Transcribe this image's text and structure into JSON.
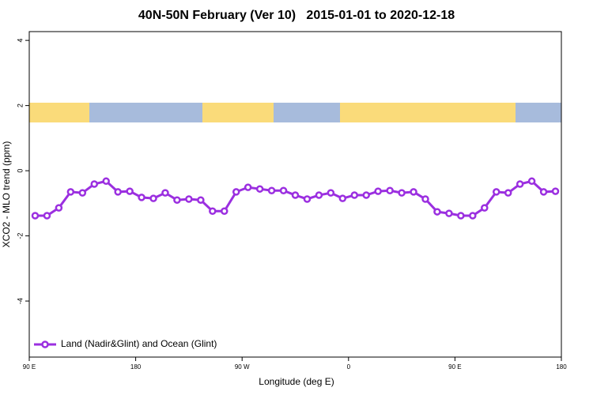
{
  "chart_data": {
    "type": "line",
    "title": "40N-50N February (Ver 10)   2015-01-01 to 2020-12-18",
    "x_label": "Longitude (deg E)",
    "y_label": "XCO2 - MLO trend (ppm)",
    "x": [
      95,
      105,
      115,
      125,
      135,
      145,
      155,
      165,
      175,
      185,
      195,
      205,
      215,
      225,
      235,
      245,
      255,
      265,
      275,
      285,
      295,
      305,
      315,
      325,
      335,
      345,
      355,
      365,
      375,
      385,
      395,
      405,
      415,
      425,
      435,
      445,
      455,
      465,
      475,
      485,
      495,
      505,
      515,
      525,
      535
    ],
    "series": [
      {
        "name": "Land (Nadir&Glint) and Ocean (Glint)",
        "color": "#9b2fe0",
        "values": [
          -1.38,
          -1.38,
          -1.14,
          -0.65,
          -0.68,
          -0.41,
          -0.32,
          -0.65,
          -0.63,
          -0.82,
          -0.85,
          -0.68,
          -0.9,
          -0.87,
          -0.9,
          -1.24,
          -1.24,
          -0.65,
          -0.51,
          -0.56,
          -0.61,
          -0.61,
          -0.75,
          -0.87,
          -0.75,
          -0.68,
          -0.85,
          -0.75,
          -0.75,
          -0.63,
          -0.61,
          -0.68,
          -0.65,
          -0.87,
          -1.26,
          -1.31,
          -1.38,
          -1.38,
          -1.14,
          -0.65,
          -0.68,
          -0.41,
          -0.32,
          -0.65,
          -0.63
        ]
      }
    ],
    "xlim": [
      90,
      540
    ],
    "xticks": [
      {
        "value": 90,
        "label": "90 E"
      },
      {
        "value": 180,
        "label": "180"
      },
      {
        "value": 270,
        "label": "90 W"
      },
      {
        "value": 360,
        "label": "0"
      },
      {
        "value": 450,
        "label": "90 E"
      },
      {
        "value": 540,
        "label": "180"
      }
    ],
    "ylim": [
      -5.72,
      4.27
    ],
    "yticks": [
      -4,
      -2,
      0,
      2,
      4
    ],
    "legend": "bottom-left"
  }
}
